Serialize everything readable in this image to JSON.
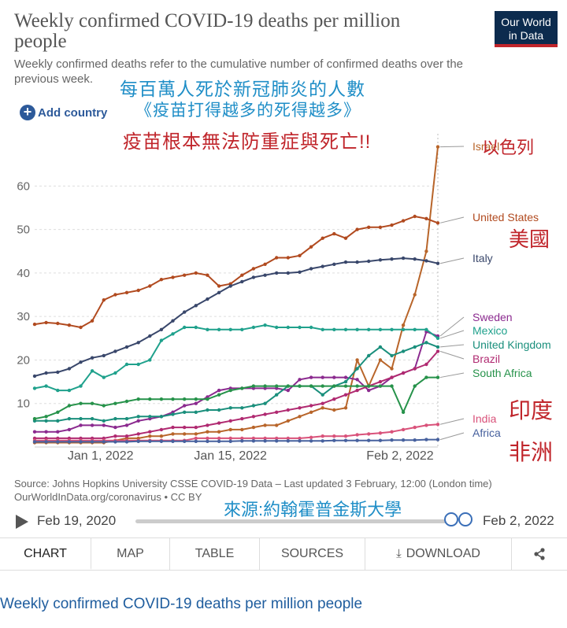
{
  "header": {
    "title": "Weekly confirmed COVID-19 deaths per million people",
    "subtitle": "Weekly confirmed deaths refer to the cumulative number of confirmed deaths over the previous week.",
    "logo_line1": "Our World",
    "logo_line2": "in Data",
    "add_country": "Add country"
  },
  "overlay": {
    "zh_title": "每百萬人死於新冠肺炎的人數",
    "zh_sub": "《疫苗打得越多的死得越多》",
    "zh_red": "疫苗根本無法防重症與死亡!!",
    "zh_israel": "以色列",
    "zh_us": "美國",
    "zh_india": "印度",
    "zh_africa": "非洲",
    "zh_source": "來源:約翰霍普金斯大學"
  },
  "chart_data": {
    "type": "line",
    "x": [
      "2021-12-29",
      "2021-12-30",
      "2021-12-31",
      "2022-01-01",
      "2022-01-02",
      "2022-01-03",
      "2022-01-04",
      "2022-01-05",
      "2022-01-06",
      "2022-01-07",
      "2022-01-08",
      "2022-01-09",
      "2022-01-10",
      "2022-01-11",
      "2022-01-12",
      "2022-01-13",
      "2022-01-14",
      "2022-01-15",
      "2022-01-16",
      "2022-01-17",
      "2022-01-18",
      "2022-01-19",
      "2022-01-20",
      "2022-01-21",
      "2022-01-22",
      "2022-01-23",
      "2022-01-24",
      "2022-01-25",
      "2022-01-26",
      "2022-01-27",
      "2022-01-28",
      "2022-01-29",
      "2022-01-30",
      "2022-01-31",
      "2022-02-01",
      "2022-02-02"
    ],
    "x_ticks": [
      "Jan 1, 2022",
      "Jan 15, 2022",
      "Feb 2, 2022"
    ],
    "y_ticks": [
      10,
      20,
      30,
      40,
      50,
      60
    ],
    "ylim": [
      0,
      72
    ],
    "series": [
      {
        "name": "Israel",
        "color": "#b8652a",
        "values": [
          1,
          1,
          1,
          1,
          1,
          1,
          1,
          1.5,
          2,
          2,
          2.5,
          2.5,
          3,
          3,
          3,
          3.5,
          3.5,
          4,
          4,
          4.5,
          5,
          5,
          6,
          7,
          8,
          9,
          8.5,
          9,
          20,
          14,
          20,
          18,
          28,
          35,
          45,
          69
        ]
      },
      {
        "name": "United States",
        "color": "#b14a1f",
        "values": [
          28.2,
          28.6,
          28.4,
          28,
          27.5,
          29,
          33.8,
          35,
          35.5,
          36,
          37,
          38.5,
          39,
          39.5,
          40,
          39.5,
          37,
          37.5,
          39.5,
          41,
          42,
          43.5,
          43.5,
          44,
          46,
          48,
          49,
          48,
          50,
          50.5,
          50.5,
          51,
          52,
          53,
          52.5,
          51.5
        ]
      },
      {
        "name": "Italy",
        "color": "#39476b",
        "values": [
          16.3,
          17,
          17.2,
          18,
          19.5,
          20.5,
          21,
          22,
          23,
          24,
          25.5,
          27,
          29,
          31,
          32.5,
          34,
          35.5,
          37,
          38,
          39,
          39.5,
          40,
          40,
          40.2,
          41,
          41.5,
          42,
          42.5,
          42.5,
          42.7,
          43,
          43.2,
          43.4,
          43.2,
          42.8,
          42.2
        ]
      },
      {
        "name": "Sweden",
        "color": "#8b2a8f",
        "values": [
          3.5,
          3.5,
          3.5,
          4,
          5,
          5,
          5,
          4.5,
          5,
          6,
          6.5,
          7,
          8,
          9.5,
          10,
          11.5,
          13,
          13.5,
          13.5,
          13.5,
          13.5,
          13.5,
          13,
          15.5,
          16,
          16,
          16,
          16,
          15.5,
          13,
          14,
          16,
          17,
          18,
          26.5,
          25.5
        ]
      },
      {
        "name": "Mexico",
        "color": "#1fa18c",
        "values": [
          13.5,
          14,
          13,
          13,
          14,
          17.5,
          16,
          17,
          19,
          19,
          20,
          24.5,
          26,
          27.5,
          27.5,
          27,
          27,
          27,
          27,
          27.5,
          28,
          27.5,
          27.5,
          27.5,
          27.5,
          27,
          27,
          27,
          27,
          27,
          27,
          27,
          27,
          27,
          27,
          25
        ]
      },
      {
        "name": "United Kingdom",
        "color": "#1a8f7c",
        "values": [
          6,
          6,
          6,
          6.5,
          6.5,
          6.5,
          6,
          6.5,
          6.5,
          7,
          7,
          7,
          7.5,
          8,
          8,
          8.5,
          8.5,
          9,
          9,
          9.5,
          10,
          12,
          14,
          14,
          14,
          12,
          14,
          15,
          18,
          21,
          23,
          21,
          22,
          23,
          24,
          23
        ]
      },
      {
        "name": "Brazil",
        "color": "#b02a71",
        "values": [
          2,
          2,
          2,
          2,
          2,
          2,
          2,
          2.5,
          2.5,
          3,
          3.5,
          4,
          4.5,
          4.5,
          4.5,
          5,
          5.5,
          6,
          6.5,
          7,
          7.5,
          8,
          8.5,
          9,
          9.5,
          10,
          11,
          12,
          13,
          14,
          15,
          16,
          17,
          18,
          19,
          22
        ]
      },
      {
        "name": "South Africa",
        "color": "#26924a",
        "values": [
          6.5,
          7,
          8,
          9.5,
          10,
          10,
          9.5,
          10,
          10.5,
          11,
          11,
          11,
          11,
          11,
          11,
          11,
          12,
          13,
          13.5,
          14,
          14,
          14,
          14,
          14,
          14,
          14,
          14,
          14,
          14,
          14,
          14,
          14,
          8,
          14,
          16,
          16
        ]
      },
      {
        "name": "India",
        "color": "#d9527a",
        "values": [
          1.5,
          1.5,
          1.5,
          1.5,
          1.5,
          1.5,
          1.5,
          1.5,
          1.5,
          1.5,
          1.5,
          1.5,
          1.5,
          1.5,
          2,
          2,
          2,
          2,
          2,
          2,
          2,
          2,
          2,
          2,
          2.2,
          2.5,
          2.5,
          2.5,
          2.8,
          3,
          3.2,
          3.5,
          4,
          4.5,
          5,
          5.2
        ]
      },
      {
        "name": "Africa",
        "color": "#47619e",
        "values": [
          1.2,
          1.2,
          1.2,
          1.2,
          1.2,
          1.2,
          1.2,
          1.2,
          1.2,
          1.3,
          1.3,
          1.3,
          1.3,
          1.3,
          1.3,
          1.3,
          1.3,
          1.3,
          1.4,
          1.4,
          1.4,
          1.4,
          1.4,
          1.4,
          1.4,
          1.4,
          1.5,
          1.5,
          1.5,
          1.5,
          1.5,
          1.6,
          1.6,
          1.6,
          1.7,
          1.7
        ]
      }
    ]
  },
  "source": {
    "line1": "Source: Johns Hopkins University CSSE COVID-19 Data – Last updated 3 February, 12:00 (London time)",
    "line2": "OurWorldInData.org/coronavirus • CC BY"
  },
  "timeline": {
    "start": "Feb 19, 2020",
    "end": "Feb 2, 2022"
  },
  "tabs": [
    {
      "label": "CHART",
      "active": true
    },
    {
      "label": "MAP"
    },
    {
      "label": "TABLE"
    },
    {
      "label": "SOURCES"
    },
    {
      "label": "DOWNLOAD"
    }
  ],
  "footer": {
    "title": "Weekly confirmed COVID-19 deaths per million people"
  }
}
